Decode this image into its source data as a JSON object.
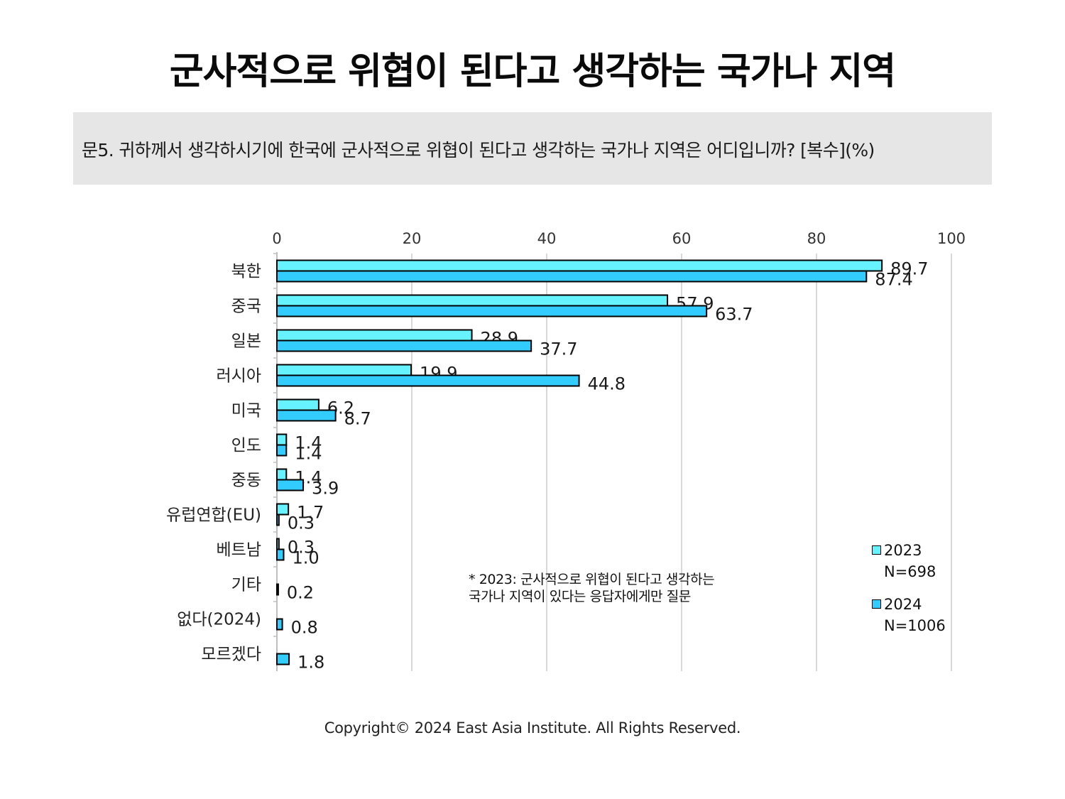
{
  "title": "군사적으로 위협이 된다고 생각하는 국가나 지역",
  "question": "문5. 귀하께서 생각하시기에 한국에 군사적으로 위협이 된다고 생각하는 국가나 지역은 어디입니까? [복수](%)",
  "note_lines": [
    "* 2023: 군사적으로 위협이 된다고 생각하는",
    "국가나 지역이 있다는 응답자에게만 질문"
  ],
  "copyright": "Copyright© 2024 East Asia Institute. All Rights Reserved.",
  "legend": [
    {
      "label": "2023",
      "n": "N=698",
      "color": "#66f3ff"
    },
    {
      "label": "2024",
      "n": "N=1006",
      "color": "#33ccff"
    }
  ],
  "chart_data": {
    "type": "bar",
    "orientation": "horizontal",
    "categories": [
      "북한",
      "중국",
      "일본",
      "러시아",
      "미국",
      "인도",
      "중동",
      "유럽연합(EU)",
      "베트남",
      "기타",
      "없다(2024)",
      "모르겠다"
    ],
    "series": [
      {
        "name": "2023",
        "color": "#66f3ff",
        "values": [
          89.7,
          57.9,
          28.9,
          19.9,
          6.2,
          1.4,
          1.4,
          1.7,
          0.3,
          null,
          null,
          null
        ]
      },
      {
        "name": "2024",
        "color": "#33ccff",
        "values": [
          87.4,
          63.7,
          37.7,
          44.8,
          8.7,
          1.4,
          3.9,
          0.3,
          1.0,
          0.2,
          0.8,
          1.8
        ]
      }
    ],
    "xlim": [
      0,
      100
    ],
    "xticks": [
      0,
      20,
      40,
      60,
      80,
      100
    ],
    "x_axis_position": "top",
    "grid": true,
    "legend_position": "bottom-right"
  }
}
